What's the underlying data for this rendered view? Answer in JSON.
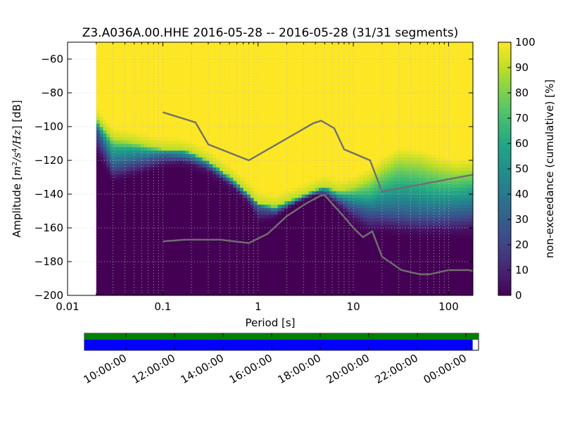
{
  "chart_data": [
    {
      "type": "heatmap",
      "title": "Z3.A036A.00.HHE   2016-05-28 -- 2016-05-28  (31/31 segments)",
      "xlabel": "Period [s]",
      "ylabel": "Amplitude [m²/s⁴/Hz] [dB]",
      "x_scale": "log",
      "xlim": [
        0.01,
        180
      ],
      "ylim": [
        -200,
        -50
      ],
      "x_ticks": [
        0.01,
        0.1,
        1,
        10,
        100
      ],
      "x_tick_labels": [
        "0.01",
        "0.1",
        "1",
        "10",
        "100"
      ],
      "y_ticks": [
        -200,
        -180,
        -160,
        -140,
        -120,
        -100,
        -80,
        -60
      ],
      "y_tick_labels": [
        "−200",
        "−180",
        "−160",
        "−140",
        "−120",
        "−100",
        "−80",
        "−60"
      ],
      "grid": true,
      "data_start_period": 0.02,
      "colorscale": "viridis",
      "colorbar": {
        "label": "non-exceedance (cumulative) [%]",
        "range": [
          0,
          100
        ],
        "ticks": [
          0,
          10,
          20,
          30,
          40,
          50,
          60,
          70,
          80,
          90,
          100
        ]
      },
      "distribution_bounds": {
        "description": "period vs amplitude (dB) where cumulative non-exceedance reaches given percent",
        "periods": [
          0.02,
          0.03,
          0.05,
          0.08,
          0.1,
          0.15,
          0.2,
          0.3,
          0.5,
          0.8,
          1,
          1.5,
          2,
          3,
          4,
          5,
          7,
          10,
          15,
          20,
          30,
          50,
          80,
          120,
          180
        ],
        "p0": [
          -118,
          -133,
          -130,
          -126,
          -125,
          -125,
          -126,
          -130,
          -138,
          -148,
          -158,
          -155,
          -150,
          -145,
          -141,
          -141,
          -150,
          -160,
          -164,
          -163,
          -165,
          -166,
          -166,
          -166,
          -166
        ],
        "p5": [
          -112,
          -130,
          -127,
          -124,
          -122,
          -121,
          -122,
          -126,
          -134,
          -144,
          -154,
          -153,
          -148,
          -143,
          -140,
          -140,
          -146,
          -154,
          -160,
          -159,
          -160,
          -161,
          -161,
          -161,
          -160
        ],
        "p30": [
          -100,
          -123,
          -120,
          -118,
          -117,
          -118,
          -119,
          -123,
          -132,
          -142,
          -147,
          -150,
          -147,
          -142,
          -139,
          -138,
          -143,
          -147,
          -150,
          -150,
          -151,
          -152,
          -152,
          -151,
          -150
        ],
        "p60": [
          -97,
          -113,
          -113,
          -114,
          -114,
          -114,
          -116,
          -121,
          -130,
          -140,
          -146,
          -148,
          -145,
          -141,
          -138,
          -136,
          -140,
          -141,
          -142,
          -138,
          -135,
          -137,
          -139,
          -139,
          -137
        ],
        "p90": [
          -95,
          -107,
          -109,
          -112,
          -113,
          -113,
          -115,
          -120,
          -129,
          -139,
          -145,
          -147,
          -144,
          -140,
          -137,
          -135,
          -138,
          -136,
          -131,
          -125,
          -119,
          -120,
          -124,
          -126,
          -125
        ]
      },
      "series": [
        {
          "name": "",
          "color": "#707070",
          "x": [
            0.1,
            0.22,
            0.3,
            0.8,
            3.8,
            4.6,
            6.3,
            8,
            15,
            20,
            180
          ],
          "y": [
            -91.5,
            -97.5,
            -110.5,
            -120,
            -98,
            -96.5,
            -101,
            -113.5,
            -120,
            -138.5,
            -128.5
          ]
        },
        {
          "name": "",
          "color": "#707070",
          "x": [
            0.1,
            0.17,
            0.4,
            0.8,
            1.26,
            2,
            3.2,
            4.5,
            5,
            6.3,
            8,
            10,
            12.6,
            15.8,
            20,
            32,
            50,
            63,
            100,
            160,
            180
          ],
          "y": [
            -168,
            -167,
            -167,
            -169,
            -163.5,
            -153,
            -145.5,
            -141,
            -140.5,
            -147,
            -153.5,
            -160,
            -165.5,
            -162,
            -177,
            -185,
            -187.5,
            -187.5,
            -185,
            -185,
            -185.5
          ]
        }
      ]
    },
    {
      "type": "table",
      "description": "data availability timeline",
      "time_ticks": [
        "10:00:00",
        "12:00:00",
        "14:00:00",
        "16:00:00",
        "18:00:00",
        "20:00:00",
        "22:00:00",
        "00:00:00"
      ],
      "bars": [
        {
          "color": "#008000",
          "coverage": [
            0.0,
            1.0
          ]
        },
        {
          "color": "#0000ff",
          "coverage": [
            0.0,
            0.985
          ]
        }
      ]
    }
  ]
}
